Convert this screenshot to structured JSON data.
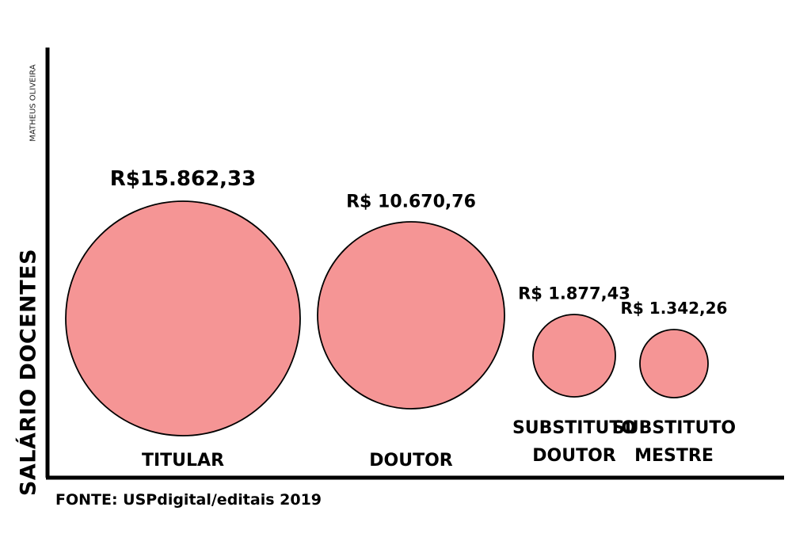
{
  "chart_data": {
    "type": "bubble",
    "ylabel": "SALÁRIO DOCENTES",
    "credit": "MATHEUS OLIVEIRA",
    "source": "FONTE: USPdigital/editais 2019",
    "bubble_color": "#f59595",
    "stroke_color": "#000000",
    "categories": [
      [
        "TITULAR"
      ],
      [
        "DOUTOR"
      ],
      [
        "SUBSTITUTO",
        "DOUTOR"
      ],
      [
        "SUBSTITUTO",
        "MESTRE"
      ]
    ],
    "values": [
      15862.33,
      10670.76,
      1877.43,
      1342.26
    ],
    "value_labels": [
      "R$15.862,33",
      "R$ 10.670,76",
      "R$ 1.877,43",
      "R$ 1.342,26"
    ]
  }
}
